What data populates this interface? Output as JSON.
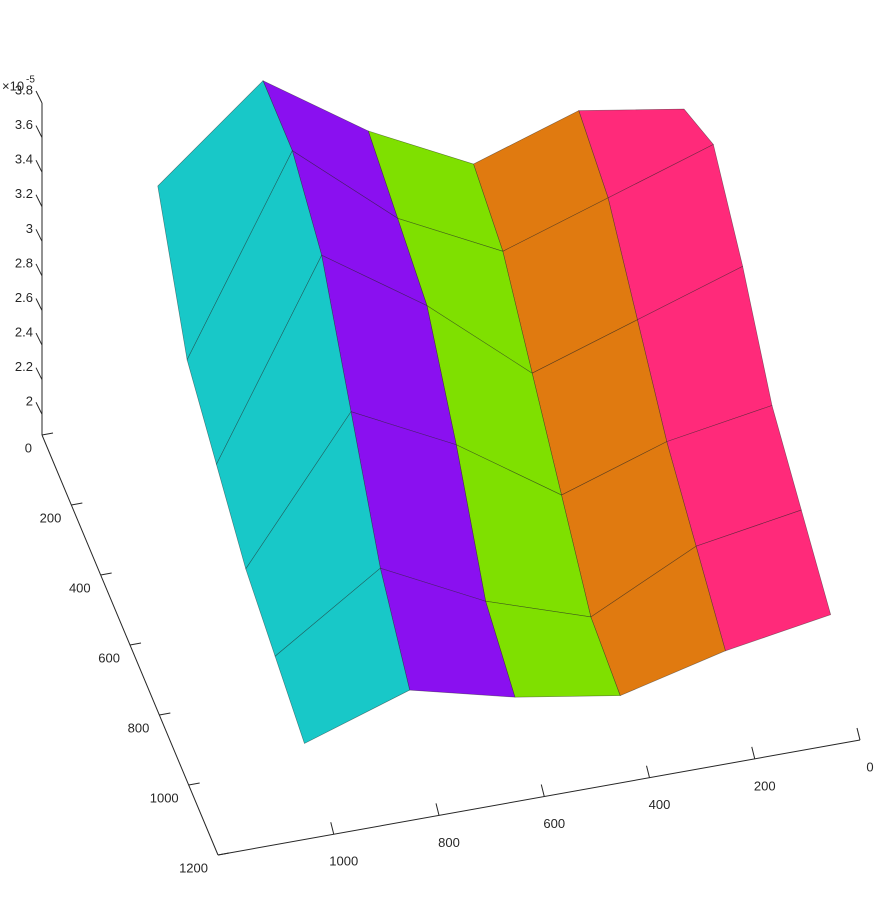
{
  "chart_data": {
    "type": "surface",
    "multiplier": "×10",
    "exponent": "-5",
    "xlim": [
      0,
      1220
    ],
    "ylim": [
      0,
      1200
    ],
    "zlim": [
      1.88,
      3.8
    ],
    "xticks": [
      0,
      200,
      400,
      600,
      800,
      1000
    ],
    "yticks": [
      0,
      200,
      400,
      600,
      800,
      1000,
      1200
    ],
    "zticks": [
      2,
      2.2,
      2.4,
      2.6,
      2.8,
      3,
      3.2,
      3.4,
      3.6,
      3.8
    ],
    "grid": false,
    "x": [
      0,
      200,
      400,
      600,
      800,
      1000
    ],
    "y": [
      0,
      200,
      400,
      600,
      800,
      1000
    ],
    "z": [
      [
        3.1,
        3.2,
        3.0,
        3.3,
        3.7,
        3.2
      ],
      [
        3.3,
        3.1,
        2.9,
        3.2,
        3.7,
        2.6
      ],
      [
        3.0,
        2.8,
        2.6,
        3.1,
        3.5,
        2.4
      ],
      [
        2.6,
        2.5,
        2.3,
        2.7,
        3.0,
        2.2
      ],
      [
        2.4,
        2.3,
        2.0,
        2.2,
        2.5,
        2.1
      ],
      [
        2.2,
        2.1,
        1.95,
        2.05,
        2.2,
        2.0
      ]
    ],
    "column_colors": [
      "#ff2a7a",
      "#e07a10",
      "#7fe000",
      "#8a10f0",
      "#18c8c8"
    ]
  }
}
